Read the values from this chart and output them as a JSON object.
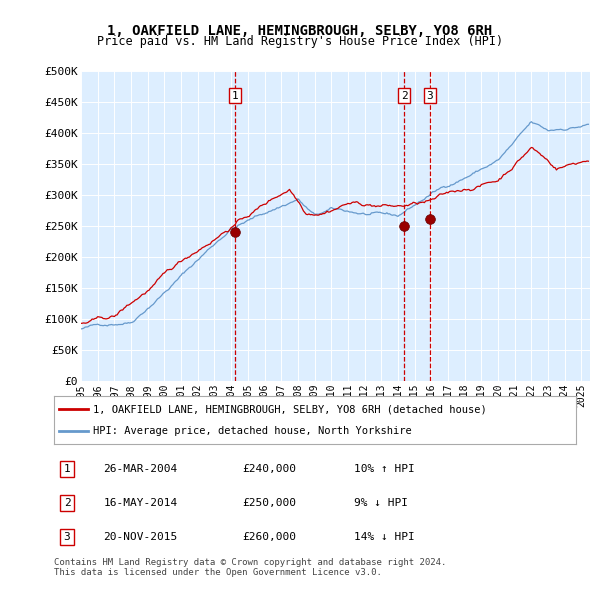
{
  "title": "1, OAKFIELD LANE, HEMINGBROUGH, SELBY, YO8 6RH",
  "subtitle": "Price paid vs. HM Land Registry's House Price Index (HPI)",
  "ylabel_ticks": [
    "£0",
    "£50K",
    "£100K",
    "£150K",
    "£200K",
    "£250K",
    "£300K",
    "£350K",
    "£400K",
    "£450K",
    "£500K"
  ],
  "ytick_values": [
    0,
    50000,
    100000,
    150000,
    200000,
    250000,
    300000,
    350000,
    400000,
    450000,
    500000
  ],
  "plot_bg_color": "#ddeeff",
  "red_line_color": "#cc0000",
  "blue_line_color": "#6699cc",
  "sale_events": [
    {
      "label": "1",
      "date": 2004.23,
      "price": 240000
    },
    {
      "label": "2",
      "date": 2014.38,
      "price": 250000
    },
    {
      "label": "3",
      "date": 2015.9,
      "price": 260000
    }
  ],
  "legend_red_label": "1, OAKFIELD LANE, HEMINGBROUGH, SELBY, YO8 6RH (detached house)",
  "legend_blue_label": "HPI: Average price, detached house, North Yorkshire",
  "table_rows": [
    {
      "num": "1",
      "date": "26-MAR-2004",
      "price": "£240,000",
      "hpi": "10% ↑ HPI"
    },
    {
      "num": "2",
      "date": "16-MAY-2014",
      "price": "£250,000",
      "hpi": "9% ↓ HPI"
    },
    {
      "num": "3",
      "date": "20-NOV-2015",
      "price": "£260,000",
      "hpi": "14% ↓ HPI"
    }
  ],
  "footnote": "Contains HM Land Registry data © Crown copyright and database right 2024.\nThis data is licensed under the Open Government Licence v3.0.",
  "xmin": 1995,
  "xmax": 2025.5
}
